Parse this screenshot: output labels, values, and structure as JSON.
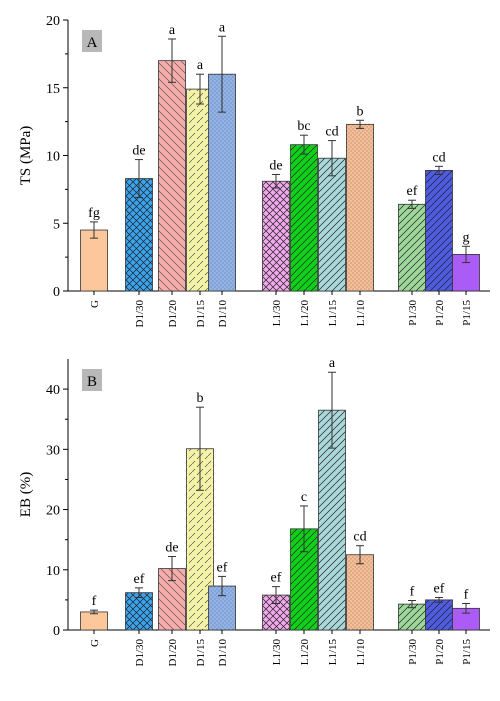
{
  "chart_data": [
    {
      "type": "bar",
      "panel_label": "A",
      "ylabel": "TS (MPa)",
      "ylim": [
        0,
        20
      ],
      "yticks": [
        "0",
        "5",
        "10",
        "15",
        "20"
      ],
      "categories": [
        "G",
        "D1/30",
        "D1/20",
        "D1/15",
        "D1/10",
        "L1/30",
        "L1/20",
        "L1/15",
        "L1/10",
        "P1/30",
        "P1/20",
        "P1/15"
      ],
      "values": [
        4.5,
        8.3,
        17.0,
        14.9,
        16.0,
        8.1,
        10.8,
        9.8,
        12.3,
        6.4,
        8.9,
        2.7
      ],
      "errors": [
        0.6,
        1.4,
        1.6,
        1.1,
        2.8,
        0.5,
        0.7,
        1.3,
        0.3,
        0.3,
        0.3,
        0.6
      ],
      "letters": [
        "fg",
        "de",
        "a",
        "a",
        "a",
        "de",
        "bc",
        "cd",
        "b",
        "ef",
        "cd",
        "g"
      ]
    },
    {
      "type": "bar",
      "panel_label": "B",
      "ylabel": "EB (%)",
      "ylim": [
        0,
        45
      ],
      "yticks": [
        "0",
        "10",
        "20",
        "30",
        "40"
      ],
      "categories": [
        "G",
        "D1/30",
        "D1/20",
        "D1/15",
        "D1/10",
        "L1/30",
        "L1/20",
        "L1/15",
        "L1/10",
        "P1/30",
        "P1/20",
        "P1/15"
      ],
      "values": [
        3.0,
        6.2,
        10.2,
        30.1,
        7.3,
        5.8,
        16.8,
        36.5,
        12.5,
        4.3,
        5.0,
        3.6
      ],
      "errors": [
        0.3,
        0.8,
        2.0,
        6.9,
        1.6,
        1.4,
        3.8,
        6.3,
        1.5,
        0.6,
        0.4,
        0.8
      ],
      "letters": [
        "f",
        "ef",
        "de",
        "b",
        "ef",
        "ef",
        "c",
        "a",
        "cd",
        "f",
        "ef",
        "f"
      ]
    }
  ],
  "colors": [
    "#fcc79a",
    "#3aa3ee",
    "#f6acaa",
    "#f3f2a6",
    "#90b3ea",
    "#f1a8ec",
    "#0ed218",
    "#a9d7da",
    "#f8bf96",
    "#9dd79a",
    "#4f5be0",
    "#ac5cf6"
  ],
  "patterns": [
    "none",
    "crosshatch",
    "backslash",
    "diagonal-dash",
    "dots",
    "crosshatch",
    "slash",
    "slash",
    "dots",
    "slash",
    "slash",
    "none"
  ]
}
